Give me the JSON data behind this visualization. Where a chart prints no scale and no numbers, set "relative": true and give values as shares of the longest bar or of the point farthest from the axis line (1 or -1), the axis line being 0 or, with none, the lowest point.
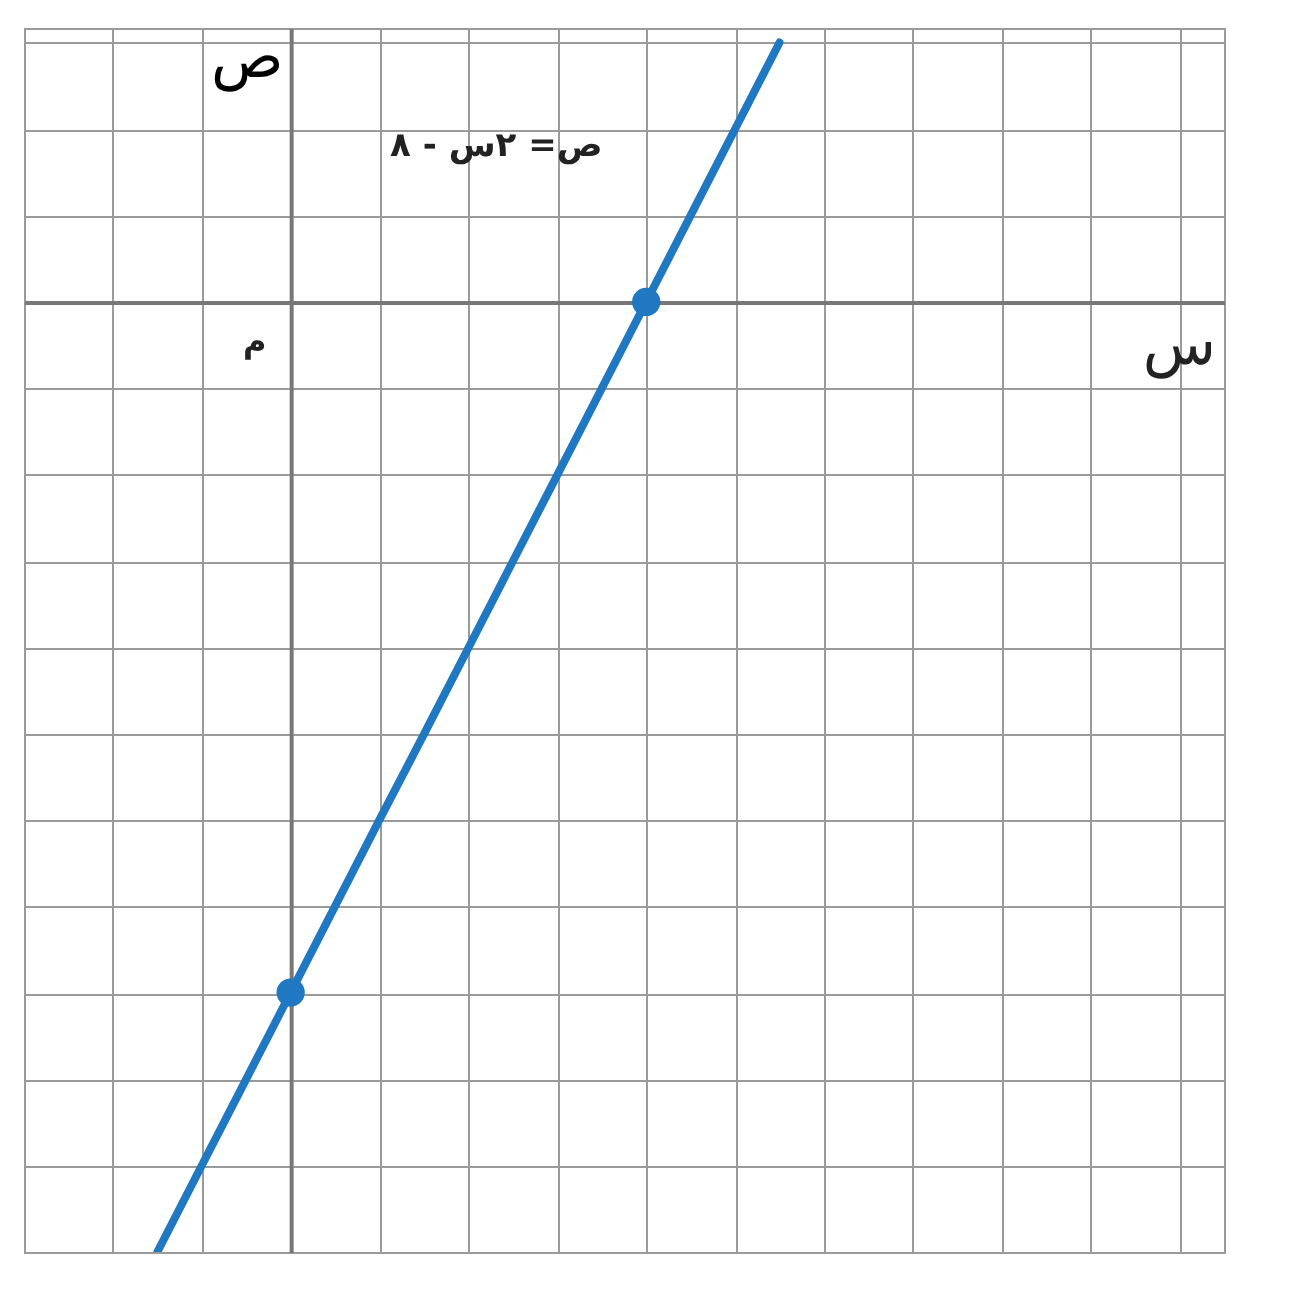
{
  "chart_data": {
    "type": "line",
    "relative": true,
    "ylabel": "ص",
    "categories": [
      null,
      null,
      null,
      null,
      null,
      null,
      null,
      null,
      null,
      null,
      null,
      null,
      null,
      null,
      null
    ],
    "series": [
      {
        "color": "#1f78c1",
        "values": [
          -1,
          -0.909,
          -0.818,
          -0.727,
          -0.636,
          -0.545,
          -0.455,
          -0.364,
          -0.273,
          -0.182,
          -0.091,
          0,
          0.091,
          0.182,
          0.273
        ]
      }
    ],
    "annotations": [
      "ص= ٢س - ٨",
      "م",
      "س"
    ],
    "grid": true
  }
}
